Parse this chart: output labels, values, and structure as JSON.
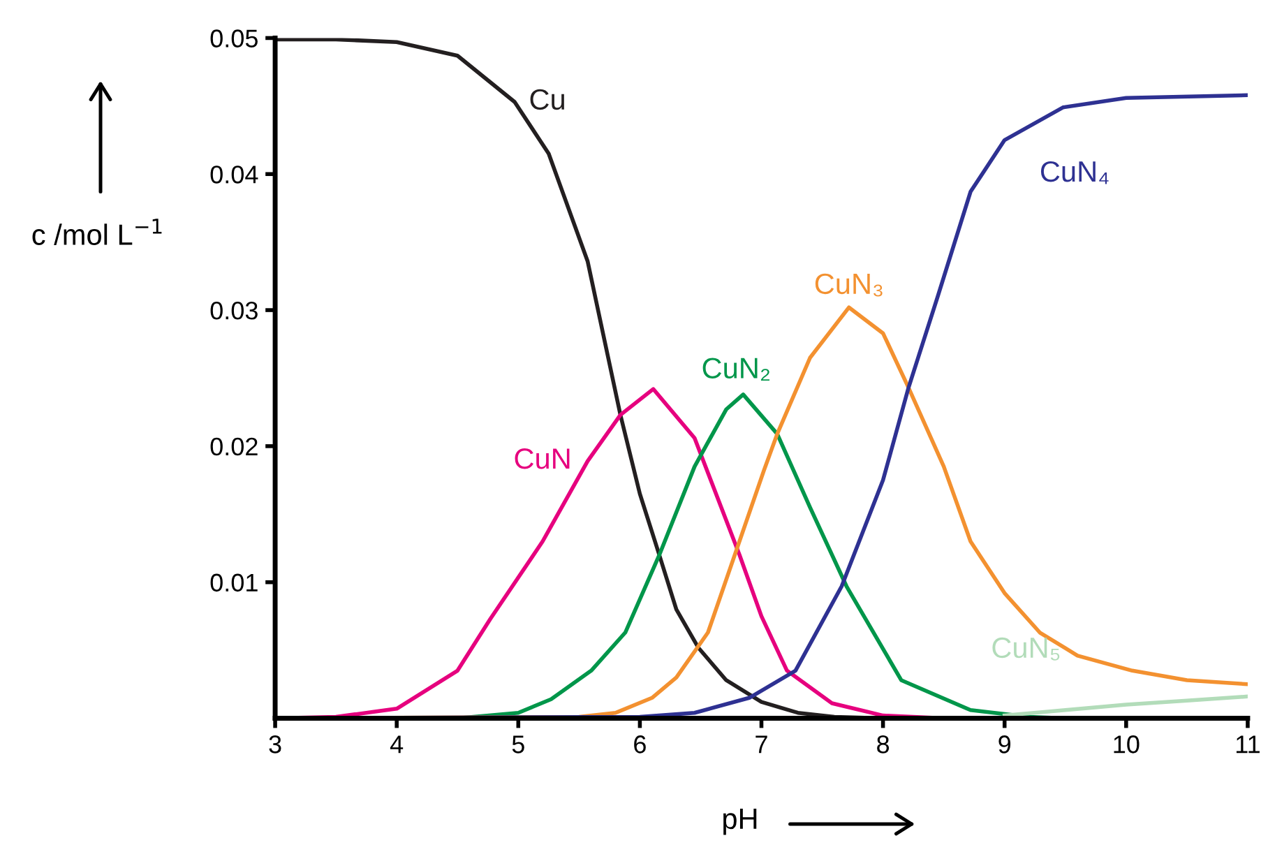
{
  "chart_data": {
    "type": "line",
    "xlabel": "pH",
    "ylabel": "c /mol L$^{−1}$",
    "xlim": [
      3,
      11
    ],
    "xticks": [
      3,
      4,
      5,
      6,
      7,
      8,
      9,
      10,
      11
    ],
    "ylim": [
      0,
      0.05
    ],
    "yticks": [
      0.01,
      0.02,
      0.03,
      0.04,
      0.05
    ],
    "grid": false,
    "legend": false,
    "marker": "none",
    "line_style": "solid",
    "series": [
      {
        "name": "Cu",
        "color": "#231f20",
        "x": [
          3,
          3.5,
          4,
          4.5,
          4.97,
          5.25,
          5.57,
          5.84,
          6.0,
          6.16,
          6.3,
          6.48,
          6.71,
          7,
          7.3,
          7.6,
          8,
          11
        ],
        "values": [
          0.0499,
          0.0499,
          0.0497,
          0.0487,
          0.0453,
          0.0415,
          0.0336,
          0.0223,
          0.0165,
          0.012,
          0.008,
          0.0052,
          0.0028,
          0.0012,
          0.0004,
          0.0001,
          0,
          0
        ]
      },
      {
        "name": "CuN",
        "color": "#e6007e",
        "x": [
          3,
          3.5,
          4,
          4.5,
          4.77,
          5.2,
          5.57,
          5.84,
          6.11,
          6.45,
          6.82,
          7.0,
          7.21,
          7.58,
          8,
          8.5,
          11
        ],
        "values": [
          0,
          0.0001,
          0.0007,
          0.0035,
          0.0073,
          0.013,
          0.0189,
          0.0223,
          0.0242,
          0.0206,
          0.012,
          0.0075,
          0.0035,
          0.0011,
          0.0002,
          0,
          0
        ]
      },
      {
        "name": "CuN₂",
        "color": "#00964a",
        "x": [
          3,
          4.5,
          5.0,
          5.27,
          5.6,
          5.88,
          6.16,
          6.45,
          6.71,
          6.85,
          7.13,
          7.4,
          7.7,
          8.15,
          8.72,
          9.2,
          9.5,
          11
        ],
        "values": [
          0,
          0,
          0.0004,
          0.0014,
          0.0035,
          0.0063,
          0.012,
          0.0185,
          0.0227,
          0.0238,
          0.0209,
          0.0155,
          0.0097,
          0.0028,
          0.0006,
          0.0001,
          0,
          0
        ]
      },
      {
        "name": "CuN₃",
        "color": "#f39130",
        "x": [
          3,
          5.5,
          5.8,
          6.1,
          6.3,
          6.56,
          7.02,
          7.13,
          7.4,
          7.72,
          8.0,
          8.21,
          8.5,
          8.72,
          9.0,
          9.29,
          9.6,
          10.05,
          10.5,
          11
        ],
        "values": [
          0,
          0.0001,
          0.0004,
          0.0015,
          0.003,
          0.0063,
          0.0182,
          0.0209,
          0.0265,
          0.0302,
          0.0283,
          0.0243,
          0.0185,
          0.013,
          0.0092,
          0.0063,
          0.0046,
          0.0035,
          0.0028,
          0.0025
        ]
      },
      {
        "name": "CuN₄",
        "color": "#2e3192",
        "x": [
          3,
          6.0,
          6.45,
          6.9,
          7.28,
          7.66,
          8.0,
          8.21,
          8.45,
          8.72,
          9.0,
          9.48,
          10,
          11
        ],
        "values": [
          0,
          0.0001,
          0.0004,
          0.0015,
          0.0035,
          0.0097,
          0.0175,
          0.0243,
          0.031,
          0.0387,
          0.0425,
          0.0449,
          0.0456,
          0.0458
        ]
      },
      {
        "name": "CuN₅",
        "color": "#b2dcb9",
        "x": [
          9,
          9.5,
          10,
          10.5,
          11
        ],
        "values": [
          0.0002,
          0.0006,
          0.001,
          0.0013,
          0.0016
        ]
      }
    ]
  }
}
